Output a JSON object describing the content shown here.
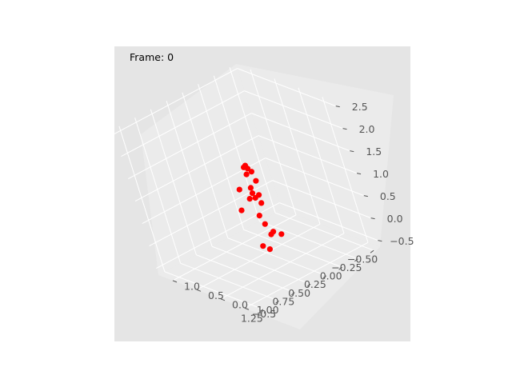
{
  "chart_data": {
    "type": "scatter",
    "projection": "3d",
    "annotation": "Frame: 0",
    "x_ticks": [
      "−0.50",
      "−0.25",
      "0.00",
      "0.25",
      "0.50",
      "0.75",
      "1.00",
      "1.25"
    ],
    "y_ticks": [
      "−0.5",
      "0.0",
      "0.5",
      "1.0"
    ],
    "z_ticks": [
      "−0.5",
      "0.0",
      "0.5",
      "1.0",
      "1.5",
      "2.0",
      "2.5"
    ],
    "xlim": [
      -0.6,
      1.35
    ],
    "ylim": [
      -0.75,
      1.3
    ],
    "zlim": [
      -0.65,
      2.6
    ],
    "grid": true,
    "panel_color": "#e5e5e5",
    "grid_color": "#ffffff",
    "marker_color": "#ff0000",
    "points": [
      {
        "x": 0.28,
        "y": 0.3,
        "z": 1.4
      },
      {
        "x": 0.32,
        "y": 0.28,
        "z": 1.4
      },
      {
        "x": 0.26,
        "y": 0.3,
        "z": 1.32
      },
      {
        "x": 0.22,
        "y": 0.3,
        "z": 1.22
      },
      {
        "x": 0.3,
        "y": 0.3,
        "z": 1.22
      },
      {
        "x": 0.2,
        "y": 0.3,
        "z": 1.0
      },
      {
        "x": 0.46,
        "y": 0.3,
        "z": 1.0
      },
      {
        "x": 0.3,
        "y": 0.3,
        "z": 0.92
      },
      {
        "x": 0.3,
        "y": 0.3,
        "z": 0.8
      },
      {
        "x": 0.36,
        "y": 0.3,
        "z": 0.72
      },
      {
        "x": 0.22,
        "y": 0.3,
        "z": 0.7
      },
      {
        "x": 0.28,
        "y": 0.3,
        "z": 0.68
      },
      {
        "x": 0.52,
        "y": 0.3,
        "z": 0.58
      },
      {
        "x": 0.22,
        "y": 0.3,
        "z": 0.52
      },
      {
        "x": 0.3,
        "y": 0.3,
        "z": 0.3
      },
      {
        "x": 0.26,
        "y": 0.3,
        "z": 0.08
      },
      {
        "x": 0.18,
        "y": 0.3,
        "z": -0.15
      },
      {
        "x": 0.22,
        "y": 0.3,
        "z": -0.18
      },
      {
        "x": 0.08,
        "y": 0.3,
        "z": -0.28
      },
      {
        "x": 0.38,
        "y": 0.3,
        "z": -0.32
      },
      {
        "x": 0.3,
        "y": 0.3,
        "z": -0.45
      }
    ]
  }
}
